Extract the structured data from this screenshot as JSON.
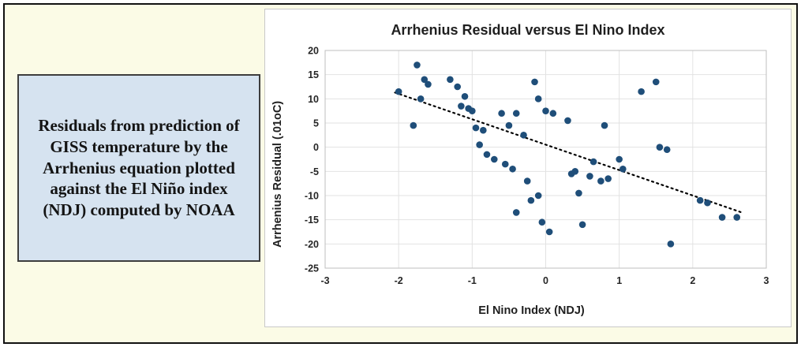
{
  "page": {
    "background_color": "#FBFBE6",
    "frame_border_color": "#111111"
  },
  "note_box": {
    "text": "Residuals from prediction of GISS temperature by the Arrhenius equation plotted against the El Niño index (NDJ) computed by NOAA",
    "background_color": "#D6E3F0"
  },
  "chart_data": {
    "type": "scatter",
    "title": "Arrhenius Residual versus El Nino Index",
    "xlabel": "El Nino Index (NDJ)",
    "ylabel": "Arrhenius Residual (.01oC)",
    "xlim": [
      -3,
      3
    ],
    "ylim": [
      -25,
      20
    ],
    "xticks": [
      -3,
      -2,
      -1,
      0,
      1,
      2,
      3
    ],
    "yticks": [
      -25,
      -20,
      -15,
      -10,
      -5,
      0,
      5,
      10,
      15,
      20
    ],
    "grid": true,
    "legend": false,
    "point_color": "#1F4E79",
    "gridline_color": "#E2E2E2",
    "axis_box_color": "#BFBFBF",
    "points": [
      [
        -2.0,
        11.5
      ],
      [
        -1.8,
        4.5
      ],
      [
        -1.75,
        17
      ],
      [
        -1.7,
        10
      ],
      [
        -1.65,
        14
      ],
      [
        -1.6,
        13
      ],
      [
        -1.3,
        14
      ],
      [
        -1.2,
        12.5
      ],
      [
        -1.15,
        8.5
      ],
      [
        -1.1,
        10.5
      ],
      [
        -1.05,
        8
      ],
      [
        -1.0,
        7.5
      ],
      [
        -0.95,
        4
      ],
      [
        -0.9,
        0.5
      ],
      [
        -0.85,
        3.5
      ],
      [
        -0.8,
        -1.5
      ],
      [
        -0.7,
        -2.5
      ],
      [
        -0.6,
        7
      ],
      [
        -0.55,
        -3.5
      ],
      [
        -0.5,
        4.5
      ],
      [
        -0.45,
        -4.5
      ],
      [
        -0.4,
        7
      ],
      [
        -0.4,
        -13.5
      ],
      [
        -0.3,
        2.5
      ],
      [
        -0.25,
        -7
      ],
      [
        -0.2,
        -11
      ],
      [
        -0.15,
        13.5
      ],
      [
        -0.1,
        10
      ],
      [
        -0.1,
        -10
      ],
      [
        -0.05,
        -15.5
      ],
      [
        0.0,
        7.5
      ],
      [
        0.05,
        -17.5
      ],
      [
        0.1,
        7
      ],
      [
        0.3,
        5.5
      ],
      [
        0.35,
        -5.5
      ],
      [
        0.4,
        -5
      ],
      [
        0.45,
        -9.5
      ],
      [
        0.5,
        -16
      ],
      [
        0.6,
        -6
      ],
      [
        0.65,
        -3
      ],
      [
        0.75,
        -7
      ],
      [
        0.8,
        4.5
      ],
      [
        0.85,
        -6.5
      ],
      [
        1.0,
        -2.5
      ],
      [
        1.05,
        -4.5
      ],
      [
        1.3,
        11.5
      ],
      [
        1.5,
        13.5
      ],
      [
        1.55,
        0
      ],
      [
        1.65,
        -0.5
      ],
      [
        1.7,
        -20
      ],
      [
        2.1,
        -11
      ],
      [
        2.2,
        -11.5
      ],
      [
        2.4,
        -14.5
      ],
      [
        2.6,
        -14.5
      ]
    ],
    "trendline": {
      "style": "dotted",
      "color": "#000000",
      "x1": -2.05,
      "y1": 11.3,
      "x2": 2.65,
      "y2": -13.4
    }
  }
}
